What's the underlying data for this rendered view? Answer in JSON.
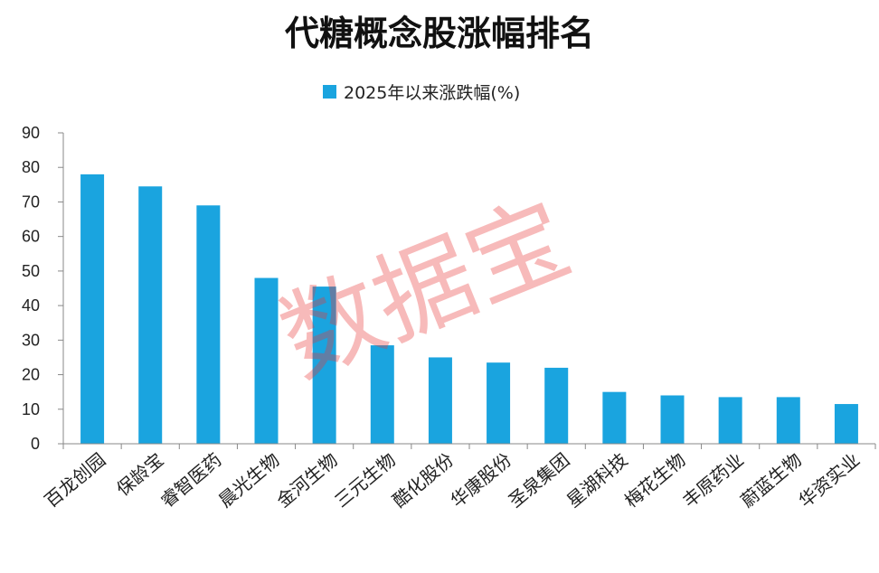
{
  "chart_data": {
    "type": "bar",
    "title": "代糖概念股涨幅排名",
    "categories": [
      "百龙创园",
      "保龄宝",
      "睿智医药",
      "晨光生物",
      "金河生物",
      "三元生物",
      "酷化股份",
      "华康股份",
      "圣泉集团",
      "星湖科技",
      "梅花生物",
      "丰原药业",
      "蔚蓝生物",
      "华资实业"
    ],
    "series": [
      {
        "name": "2025年以来涨跌幅(%)",
        "values": [
          78,
          74.5,
          69,
          48,
          45.5,
          28.5,
          25,
          23.5,
          22,
          15,
          14,
          13.5,
          13.5,
          11.5
        ]
      }
    ],
    "ylim": [
      0,
      90
    ],
    "yticks": [
      0,
      10,
      20,
      30,
      40,
      50,
      60,
      70,
      80,
      90
    ],
    "xlabel": "",
    "ylabel": "",
    "grid": false,
    "legend": "top-center",
    "colors": {
      "bar": "#1aa4df",
      "axis": "#888888"
    }
  },
  "watermark": "数据宝"
}
